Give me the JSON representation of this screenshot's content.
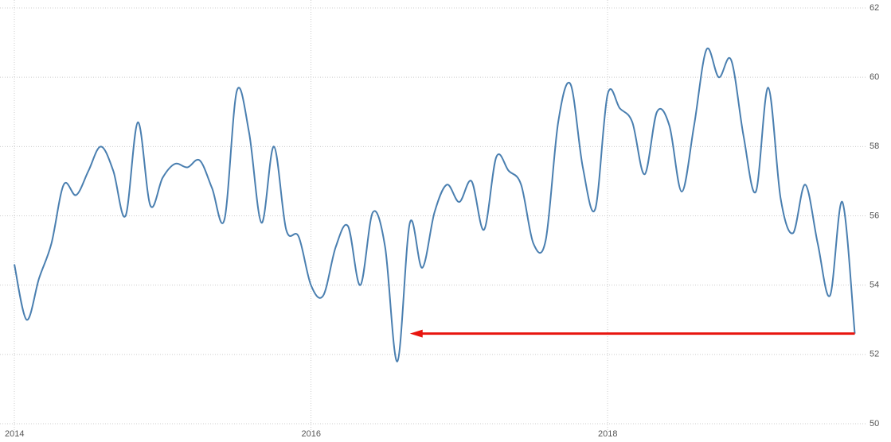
{
  "chart_data": {
    "type": "line",
    "x": [
      2014,
      2014.083,
      2014.167,
      2014.25,
      2014.333,
      2014.417,
      2014.5,
      2014.583,
      2014.667,
      2014.75,
      2014.833,
      2014.917,
      2015,
      2015.083,
      2015.167,
      2015.25,
      2015.333,
      2015.417,
      2015.5,
      2015.583,
      2015.667,
      2015.75,
      2015.833,
      2015.917,
      2016,
      2016.083,
      2016.167,
      2016.25,
      2016.333,
      2016.417,
      2016.5,
      2016.583,
      2016.667,
      2016.75,
      2016.833,
      2016.917,
      2017,
      2017.083,
      2017.167,
      2017.25,
      2017.333,
      2017.417,
      2017.5,
      2017.583,
      2017.667,
      2017.75,
      2017.833,
      2017.917,
      2018,
      2018.083,
      2018.167,
      2018.25,
      2018.333,
      2018.417,
      2018.5,
      2018.583,
      2018.667,
      2018.75,
      2018.833,
      2018.917,
      2019,
      2019.083,
      2019.167,
      2019.25,
      2019.333,
      2019.417,
      2019.5,
      2019.583,
      2019.667
    ],
    "series": [
      {
        "color": "#4a7fb0",
        "values": [
          54.6,
          53.0,
          54.2,
          55.2,
          56.9,
          56.6,
          57.3,
          58.0,
          57.3,
          56.0,
          58.7,
          56.3,
          57.1,
          57.5,
          57.4,
          57.6,
          56.8,
          55.9,
          59.6,
          58.4,
          55.8,
          58.0,
          55.6,
          55.4,
          54.0,
          53.7,
          55.1,
          55.7,
          54.0,
          56.1,
          55.1,
          51.8,
          55.8,
          54.5,
          56.1,
          56.9,
          56.4,
          57.0,
          55.6,
          57.7,
          57.3,
          56.9,
          55.2,
          55.3,
          58.7,
          59.8,
          57.4,
          56.2,
          59.5,
          59.1,
          58.7,
          57.2,
          59.0,
          58.6,
          56.7,
          58.6,
          60.8,
          60.0,
          60.5,
          58.3,
          56.7,
          59.7,
          56.5,
          55.5,
          56.9,
          55.2,
          53.7,
          56.4,
          52.6
        ]
      }
    ],
    "arrow": {
      "x_from": 2019.667,
      "x_to": 2016.667,
      "y": 52.6,
      "color": "#e8150f"
    },
    "xlim": [
      2014,
      2019.75
    ],
    "xticks": [
      2014,
      2016,
      2018
    ],
    "ylim": [
      50,
      62
    ],
    "yticks": [
      50,
      52,
      54,
      56,
      58,
      60,
      62
    ],
    "grid": true
  }
}
